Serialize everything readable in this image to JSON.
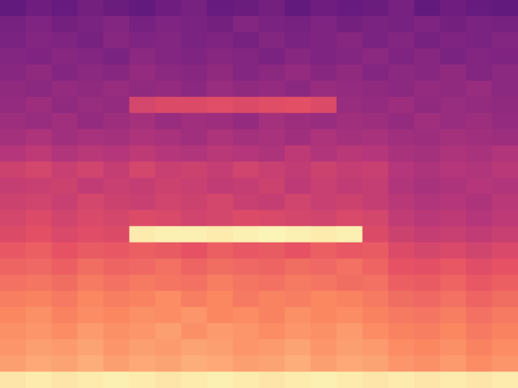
{
  "chart_data": {
    "type": "heatmap",
    "tick_labels": false,
    "zlim": [
      0,
      100
    ],
    "cells": [
      [
        30,
        33,
        31,
        34,
        32,
        30,
        33,
        35,
        31,
        32,
        34,
        30,
        33,
        31,
        32,
        35,
        30,
        33,
        31,
        30
      ],
      [
        35,
        37,
        34,
        36,
        38,
        35,
        37,
        36,
        34,
        38,
        36,
        35,
        37,
        34,
        36,
        35,
        37,
        34,
        36,
        35
      ],
      [
        36,
        38,
        37,
        35,
        39,
        37,
        38,
        36,
        37,
        35,
        38,
        36,
        37,
        39,
        36,
        38,
        35,
        37,
        36,
        38
      ],
      [
        38,
        37,
        39,
        38,
        36,
        40,
        38,
        37,
        39,
        38,
        36,
        39,
        37,
        38,
        40,
        37,
        39,
        36,
        38,
        37
      ],
      [
        39,
        41,
        38,
        40,
        39,
        42,
        40,
        39,
        41,
        38,
        40,
        42,
        39,
        41,
        38,
        40,
        39,
        41,
        38,
        40
      ],
      [
        41,
        40,
        42,
        41,
        43,
        41,
        42,
        40,
        43,
        41,
        42,
        40,
        43,
        42,
        41,
        40,
        42,
        41,
        43,
        40
      ],
      [
        42,
        44,
        41,
        43,
        42,
        58,
        60,
        60,
        61,
        60,
        61,
        62,
        60,
        43,
        42,
        44,
        41,
        43,
        42,
        41
      ],
      [
        44,
        43,
        45,
        42,
        44,
        46,
        43,
        45,
        44,
        42,
        46,
        44,
        43,
        45,
        44,
        42,
        45,
        43,
        44,
        42
      ],
      [
        46,
        48,
        45,
        47,
        46,
        48,
        47,
        45,
        48,
        46,
        47,
        45,
        48,
        46,
        47,
        45,
        44,
        46,
        45,
        44
      ],
      [
        50,
        52,
        49,
        51,
        50,
        52,
        50,
        49,
        51,
        50,
        48,
        52,
        49,
        51,
        50,
        47,
        46,
        48,
        47,
        49
      ],
      [
        56,
        58,
        55,
        57,
        54,
        58,
        55,
        56,
        54,
        57,
        55,
        53,
        56,
        54,
        55,
        50,
        48,
        50,
        49,
        51
      ],
      [
        54,
        55,
        56,
        53,
        55,
        54,
        56,
        55,
        53,
        54,
        56,
        52,
        55,
        53,
        54,
        49,
        47,
        48,
        50,
        49
      ],
      [
        56,
        57,
        55,
        58,
        56,
        55,
        57,
        56,
        58,
        55,
        54,
        57,
        55,
        56,
        54,
        51,
        49,
        50,
        48,
        51
      ],
      [
        58,
        60,
        57,
        59,
        58,
        60,
        59,
        57,
        58,
        60,
        59,
        58,
        57,
        59,
        58,
        53,
        51,
        52,
        50,
        52
      ],
      [
        60,
        62,
        59,
        61,
        60,
        96,
        97,
        97,
        96,
        97,
        98,
        97,
        96,
        97,
        60,
        56,
        54,
        55,
        53,
        55
      ],
      [
        64,
        66,
        63,
        65,
        64,
        66,
        65,
        63,
        66,
        64,
        65,
        63,
        66,
        64,
        65,
        60,
        58,
        59,
        57,
        59
      ],
      [
        67,
        68,
        66,
        69,
        67,
        68,
        70,
        67,
        69,
        68,
        67,
        69,
        68,
        70,
        67,
        63,
        62,
        64,
        61,
        63
      ],
      [
        70,
        71,
        69,
        72,
        70,
        72,
        71,
        70,
        73,
        71,
        70,
        72,
        71,
        69,
        70,
        66,
        65,
        67,
        64,
        66
      ],
      [
        73,
        74,
        72,
        75,
        73,
        74,
        76,
        73,
        75,
        72,
        74,
        73,
        75,
        74,
        72,
        69,
        68,
        70,
        67,
        69
      ],
      [
        75,
        77,
        74,
        76,
        75,
        77,
        76,
        78,
        75,
        76,
        74,
        77,
        75,
        76,
        74,
        72,
        71,
        73,
        70,
        72
      ],
      [
        77,
        78,
        76,
        79,
        77,
        78,
        80,
        77,
        79,
        78,
        76,
        78,
        77,
        79,
        76,
        74,
        73,
        75,
        72,
        74
      ],
      [
        78,
        80,
        79,
        81,
        78,
        80,
        79,
        81,
        80,
        78,
        79,
        81,
        78,
        80,
        79,
        76,
        75,
        77,
        74,
        76
      ],
      [
        80,
        82,
        81,
        83,
        80,
        82,
        81,
        83,
        82,
        80,
        81,
        83,
        80,
        82,
        81,
        78,
        77,
        79,
        76,
        78
      ],
      [
        95,
        96,
        95,
        96,
        97,
        96,
        95,
        96,
        97,
        96,
        95,
        96,
        97,
        96,
        95,
        96,
        95,
        96,
        95,
        96
      ]
    ]
  }
}
